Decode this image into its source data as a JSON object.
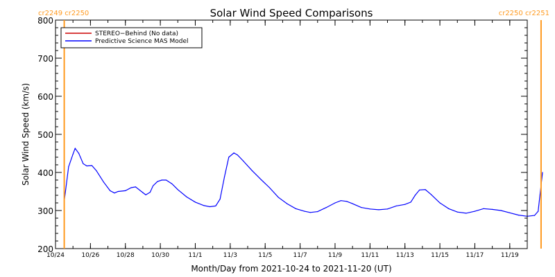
{
  "chart_data": {
    "type": "line",
    "title": "Solar Wind Speed Comparisons",
    "xlabel": "Month/Day from 2021-10-24 to 2021-11-20 (UT)",
    "ylabel": "Solar Wind Speed (km/s)",
    "ylim": [
      200,
      800
    ],
    "xlim": [
      "2021-10-24",
      "2021-11-20"
    ],
    "yticks": [
      "200",
      "300",
      "400",
      "500",
      "600",
      "700",
      "800"
    ],
    "xticks": [
      {
        "x": "2021-10-24",
        "label": "10/24"
      },
      {
        "x": "2021-10-26",
        "label": "10/26"
      },
      {
        "x": "2021-10-28",
        "label": "10/28"
      },
      {
        "x": "2021-10-30",
        "label": "10/30"
      },
      {
        "x": "2021-11-01",
        "label": "11/1"
      },
      {
        "x": "2021-11-03",
        "label": "11/3"
      },
      {
        "x": "2021-11-05",
        "label": "11/5"
      },
      {
        "x": "2021-11-07",
        "label": "11/7"
      },
      {
        "x": "2021-11-09",
        "label": "11/9"
      },
      {
        "x": "2021-11-11",
        "label": "11/11"
      },
      {
        "x": "2021-11-13",
        "label": "11/13"
      },
      {
        "x": "2021-11-15",
        "label": "11/15"
      },
      {
        "x": "2021-11-17",
        "label": "11/17"
      },
      {
        "x": "2021-11-19",
        "label": "11/19"
      }
    ],
    "legend": {
      "placement": "top-left",
      "entries": [
        {
          "label": "STEREO−Behind (No data)",
          "color": "#cc0000"
        },
        {
          "label": "Predictive Science MAS Model",
          "color": "#0000ff"
        }
      ]
    },
    "carrington_markers": [
      {
        "x": "2021-10-24 12:00",
        "label": "cr2249 cr2250",
        "color": "#ff9a1f",
        "label_side": "left"
      },
      {
        "x": "2021-11-20 19:00",
        "label": "cr2250 cr2251",
        "color": "#ff9a1f",
        "label_side": "right"
      }
    ],
    "series": [
      {
        "name": "Predictive Science MAS Model",
        "color": "#0000ff",
        "points": [
          [
            "2021-10-24 12:00",
            325
          ],
          [
            "2021-10-24 18:00",
            415
          ],
          [
            "2021-10-25 00:00",
            448
          ],
          [
            "2021-10-25 03:00",
            463
          ],
          [
            "2021-10-25 08:00",
            450
          ],
          [
            "2021-10-25 14:00",
            423
          ],
          [
            "2021-10-25 19:00",
            417
          ],
          [
            "2021-10-26 02:00",
            418
          ],
          [
            "2021-10-26 08:00",
            405
          ],
          [
            "2021-10-26 18:00",
            375
          ],
          [
            "2021-10-27 03:00",
            352
          ],
          [
            "2021-10-27 09:00",
            346
          ],
          [
            "2021-10-27 14:00",
            350
          ],
          [
            "2021-10-28 00:00",
            352
          ],
          [
            "2021-10-28 08:00",
            360
          ],
          [
            "2021-10-28 14:00",
            362
          ],
          [
            "2021-10-29 00:00",
            347
          ],
          [
            "2021-10-29 04:00",
            341
          ],
          [
            "2021-10-29 10:00",
            348
          ],
          [
            "2021-10-29 14:00",
            365
          ],
          [
            "2021-10-29 20:00",
            376
          ],
          [
            "2021-10-30 02:00",
            380
          ],
          [
            "2021-10-30 08:00",
            380
          ],
          [
            "2021-10-30 16:00",
            370
          ],
          [
            "2021-10-31 00:00",
            355
          ],
          [
            "2021-10-31 12:00",
            336
          ],
          [
            "2021-11-01 00:00",
            322
          ],
          [
            "2021-11-01 12:00",
            313
          ],
          [
            "2021-11-01 20:00",
            310
          ],
          [
            "2021-11-02 04:00",
            312
          ],
          [
            "2021-11-02 10:00",
            330
          ],
          [
            "2021-11-02 16:00",
            388
          ],
          [
            "2021-11-02 22:00",
            440
          ],
          [
            "2021-11-03 05:00",
            451
          ],
          [
            "2021-11-03 10:00",
            446
          ],
          [
            "2021-11-03 18:00",
            430
          ],
          [
            "2021-11-04 06:00",
            405
          ],
          [
            "2021-11-04 18:00",
            382
          ],
          [
            "2021-11-05 06:00",
            360
          ],
          [
            "2021-11-05 18:00",
            335
          ],
          [
            "2021-11-06 06:00",
            318
          ],
          [
            "2021-11-06 18:00",
            305
          ],
          [
            "2021-11-07 06:00",
            298
          ],
          [
            "2021-11-07 14:00",
            295
          ],
          [
            "2021-11-08 00:00",
            297
          ],
          [
            "2021-11-08 12:00",
            308
          ],
          [
            "2021-11-09 00:00",
            320
          ],
          [
            "2021-11-09 08:00",
            326
          ],
          [
            "2021-11-09 16:00",
            324
          ],
          [
            "2021-11-10 00:00",
            318
          ],
          [
            "2021-11-10 12:00",
            308
          ],
          [
            "2021-11-11 00:00",
            304
          ],
          [
            "2021-11-11 12:00",
            302
          ],
          [
            "2021-11-12 00:00",
            304
          ],
          [
            "2021-11-12 12:00",
            312
          ],
          [
            "2021-11-13 00:00",
            316
          ],
          [
            "2021-11-13 08:00",
            322
          ],
          [
            "2021-11-13 14:00",
            340
          ],
          [
            "2021-11-13 20:00",
            354
          ],
          [
            "2021-11-14 04:00",
            355
          ],
          [
            "2021-11-14 12:00",
            342
          ],
          [
            "2021-11-15 00:00",
            320
          ],
          [
            "2021-11-15 12:00",
            305
          ],
          [
            "2021-11-16 00:00",
            296
          ],
          [
            "2021-11-16 12:00",
            293
          ],
          [
            "2021-11-17 00:00",
            298
          ],
          [
            "2021-11-17 12:00",
            305
          ],
          [
            "2021-11-18 00:00",
            303
          ],
          [
            "2021-11-18 12:00",
            300
          ],
          [
            "2021-11-19 00:00",
            294
          ],
          [
            "2021-11-19 12:00",
            288
          ],
          [
            "2021-11-20 00:00",
            285
          ],
          [
            "2021-11-20 10:00",
            287
          ],
          [
            "2021-11-20 15:00",
            298
          ],
          [
            "2021-11-20 21:00",
            400
          ]
        ]
      }
    ]
  }
}
